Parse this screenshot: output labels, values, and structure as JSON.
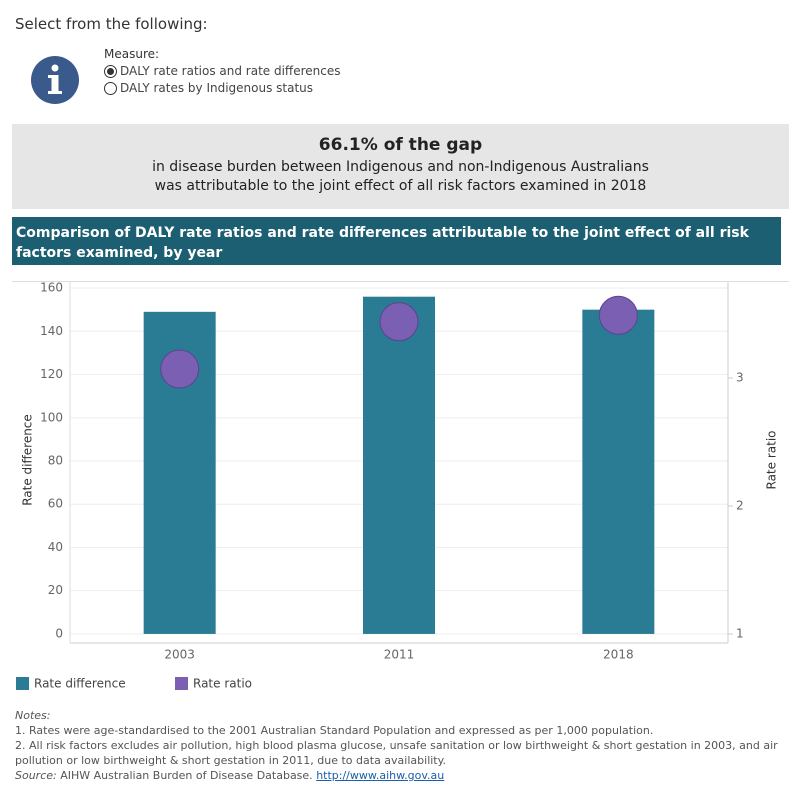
{
  "header": {
    "prompt": "Select from the following:"
  },
  "measure": {
    "label": "Measure:",
    "options": [
      "DALY rate ratios and rate differences",
      "DALY rates by Indigenous status"
    ]
  },
  "callout": {
    "headline": "66.1% of the gap",
    "lines": [
      "in disease burden between Indigenous and non-Indigenous Australians",
      "was attributable to the joint effect of all risk factors examined in 2018"
    ]
  },
  "chart_data": {
    "type": "combo",
    "title": "Comparison of DALY rate ratios and rate differences attributable to the joint effect of all risk factors examined, by year",
    "ylabel": "Rate difference",
    "y2label": "Rate ratio",
    "categories": [
      "2003",
      "2011",
      "2018"
    ],
    "series": [
      {
        "name": "Rate difference",
        "type": "bar",
        "color": "#2a7b94",
        "values": [
          149,
          156,
          150
        ]
      },
      {
        "name": "Rate ratio",
        "type": "scatter",
        "axis": "y2",
        "color": "#7b5fb2",
        "values": [
          3.07,
          3.44,
          3.49
        ]
      }
    ],
    "ylim": [
      -4.2,
      162.8
    ],
    "yticks": [
      0,
      20,
      40,
      60,
      80,
      100,
      120,
      140,
      160
    ],
    "y2lim": [
      0.93,
      3.75
    ],
    "y2ticks": [
      1,
      2,
      3
    ],
    "grid": true
  },
  "notes": {
    "heading": "Notes:",
    "items": [
      "1. Rates were age-standardised to the 2001 Australian Standard Population and expressed as per 1,000 population.",
      "2. All risk factors excludes  air pollution, high blood plasma glucose, unsafe sanitation or low birthweight & short gestation in 2003, and air pollution or low birthweight & short gestation in 2011, due to data availability."
    ],
    "source_label": "Source:",
    "source_text": "AIHW Australian Burden of Disease Database.",
    "source_link": "http://www.aihw.gov.au"
  }
}
